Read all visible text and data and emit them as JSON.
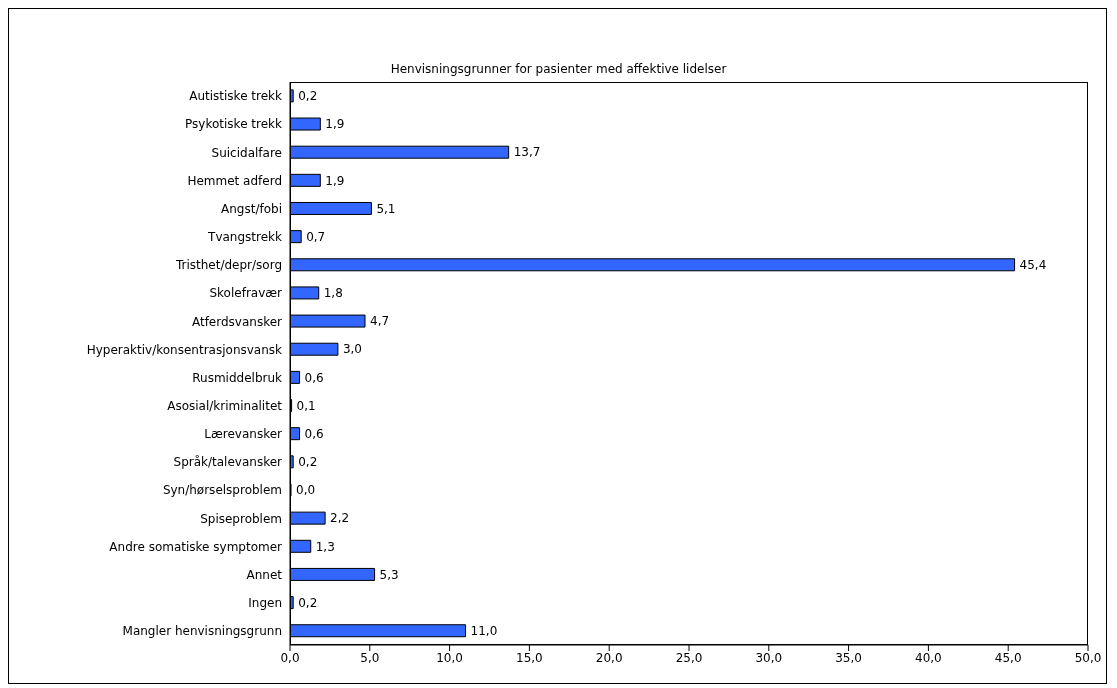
{
  "chart_data": {
    "type": "bar",
    "orientation": "horizontal",
    "title": "Henvisningsgrunner for pasienter med affektive lidelser",
    "categories": [
      "Autistiske trekk",
      "Psykotiske trekk",
      "Suicidalfare",
      "Hemmet adferd",
      "Angst/fobi",
      "Tvangstrekk",
      "Tristhet/depr/sorg",
      "Skolefravær",
      "Atferdsvansker",
      "Hyperaktiv/konsentrasjonsvansk",
      "Rusmiddelbruk",
      "Asosial/kriminalitet",
      "Lærevansker",
      "Språk/talevansker",
      "Syn/hørselsproblem",
      "Spiseproblem",
      "Andre somatiske symptomer",
      "Annet",
      "Ingen",
      "Mangler henvisningsgrunn"
    ],
    "values": [
      0.2,
      1.9,
      13.7,
      1.9,
      5.1,
      0.7,
      45.4,
      1.8,
      4.7,
      3.0,
      0.6,
      0.1,
      0.6,
      0.2,
      0.0,
      2.2,
      1.3,
      5.3,
      0.2,
      11.0
    ],
    "value_labels": [
      "0,2",
      "1,9",
      "13,7",
      "1,9",
      "5,1",
      "0,7",
      "45,4",
      "1,8",
      "4,7",
      "3,0",
      "0,6",
      "0,1",
      "0,6",
      "0,2",
      "0,0",
      "2,2",
      "1,3",
      "5,3",
      "0,2",
      "11,0"
    ],
    "color": "#3366ff",
    "xlim": [
      0,
      50
    ],
    "xticks": [
      {
        "value": 0,
        "label": "0,0"
      },
      {
        "value": 5,
        "label": "5,0"
      },
      {
        "value": 10,
        "label": "10,0"
      },
      {
        "value": 15,
        "label": "15,0"
      },
      {
        "value": 20,
        "label": "20,0"
      },
      {
        "value": 25,
        "label": "25,0"
      },
      {
        "value": 30,
        "label": "30,0"
      },
      {
        "value": 35,
        "label": "35,0"
      },
      {
        "value": 40,
        "label": "40,0"
      },
      {
        "value": 45,
        "label": "45,0"
      },
      {
        "value": 50,
        "label": "50,0"
      }
    ],
    "grid": false,
    "legend": false
  }
}
